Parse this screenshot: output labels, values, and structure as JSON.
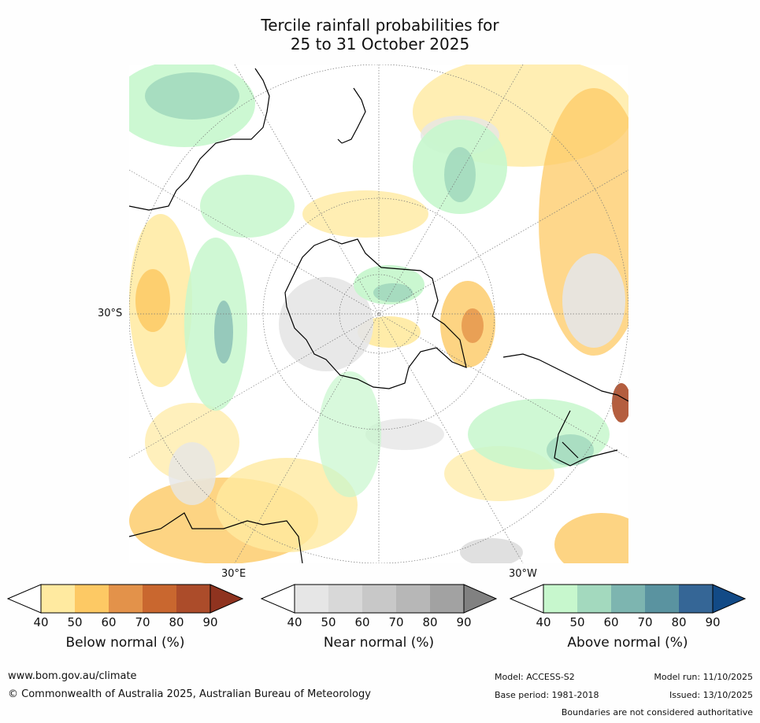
{
  "title": {
    "line1": "Tercile rainfall probabilities for",
    "line2": "25 to 31 October 2025"
  },
  "map": {
    "projection": "south-polar-stereographic",
    "axis_labels": {
      "lat": "30°S",
      "lon_east": "30°E",
      "lon_west": "30°W"
    }
  },
  "colorbars": [
    {
      "label": "Below normal (%)",
      "ticks": [
        "40",
        "50",
        "60",
        "70",
        "80",
        "90"
      ],
      "colors": [
        "#ffffff",
        "#ffeaa0",
        "#fdc964",
        "#e3924a",
        "#c9672f",
        "#ac4c2a",
        "#8f331f"
      ]
    },
    {
      "label": "Near normal (%)",
      "ticks": [
        "40",
        "50",
        "60",
        "70",
        "80",
        "90"
      ],
      "colors": [
        "#ffffff",
        "#e6e6e6",
        "#d8d8d8",
        "#c8c8c8",
        "#b7b7b7",
        "#a2a2a2",
        "#818181"
      ]
    },
    {
      "label": "Above normal (%)",
      "ticks": [
        "40",
        "50",
        "60",
        "70",
        "80",
        "90"
      ],
      "colors": [
        "#ffffff",
        "#c7f7cd",
        "#a3d9be",
        "#7db5b0",
        "#5a93a0",
        "#356696",
        "#124a86"
      ]
    }
  ],
  "footer": {
    "url": "www.bom.gov.au/climate",
    "copyright": "© Commonwealth of Australia 2025, Australian Bureau of Meteorology",
    "model": "Model: ACCESS-S2",
    "base_period": "Base period: 1981-2018",
    "model_run": "Model run: 11/10/2025",
    "issued": "Issued: 13/10/2025",
    "disclaimer": "Boundaries are not considered authoritative"
  }
}
